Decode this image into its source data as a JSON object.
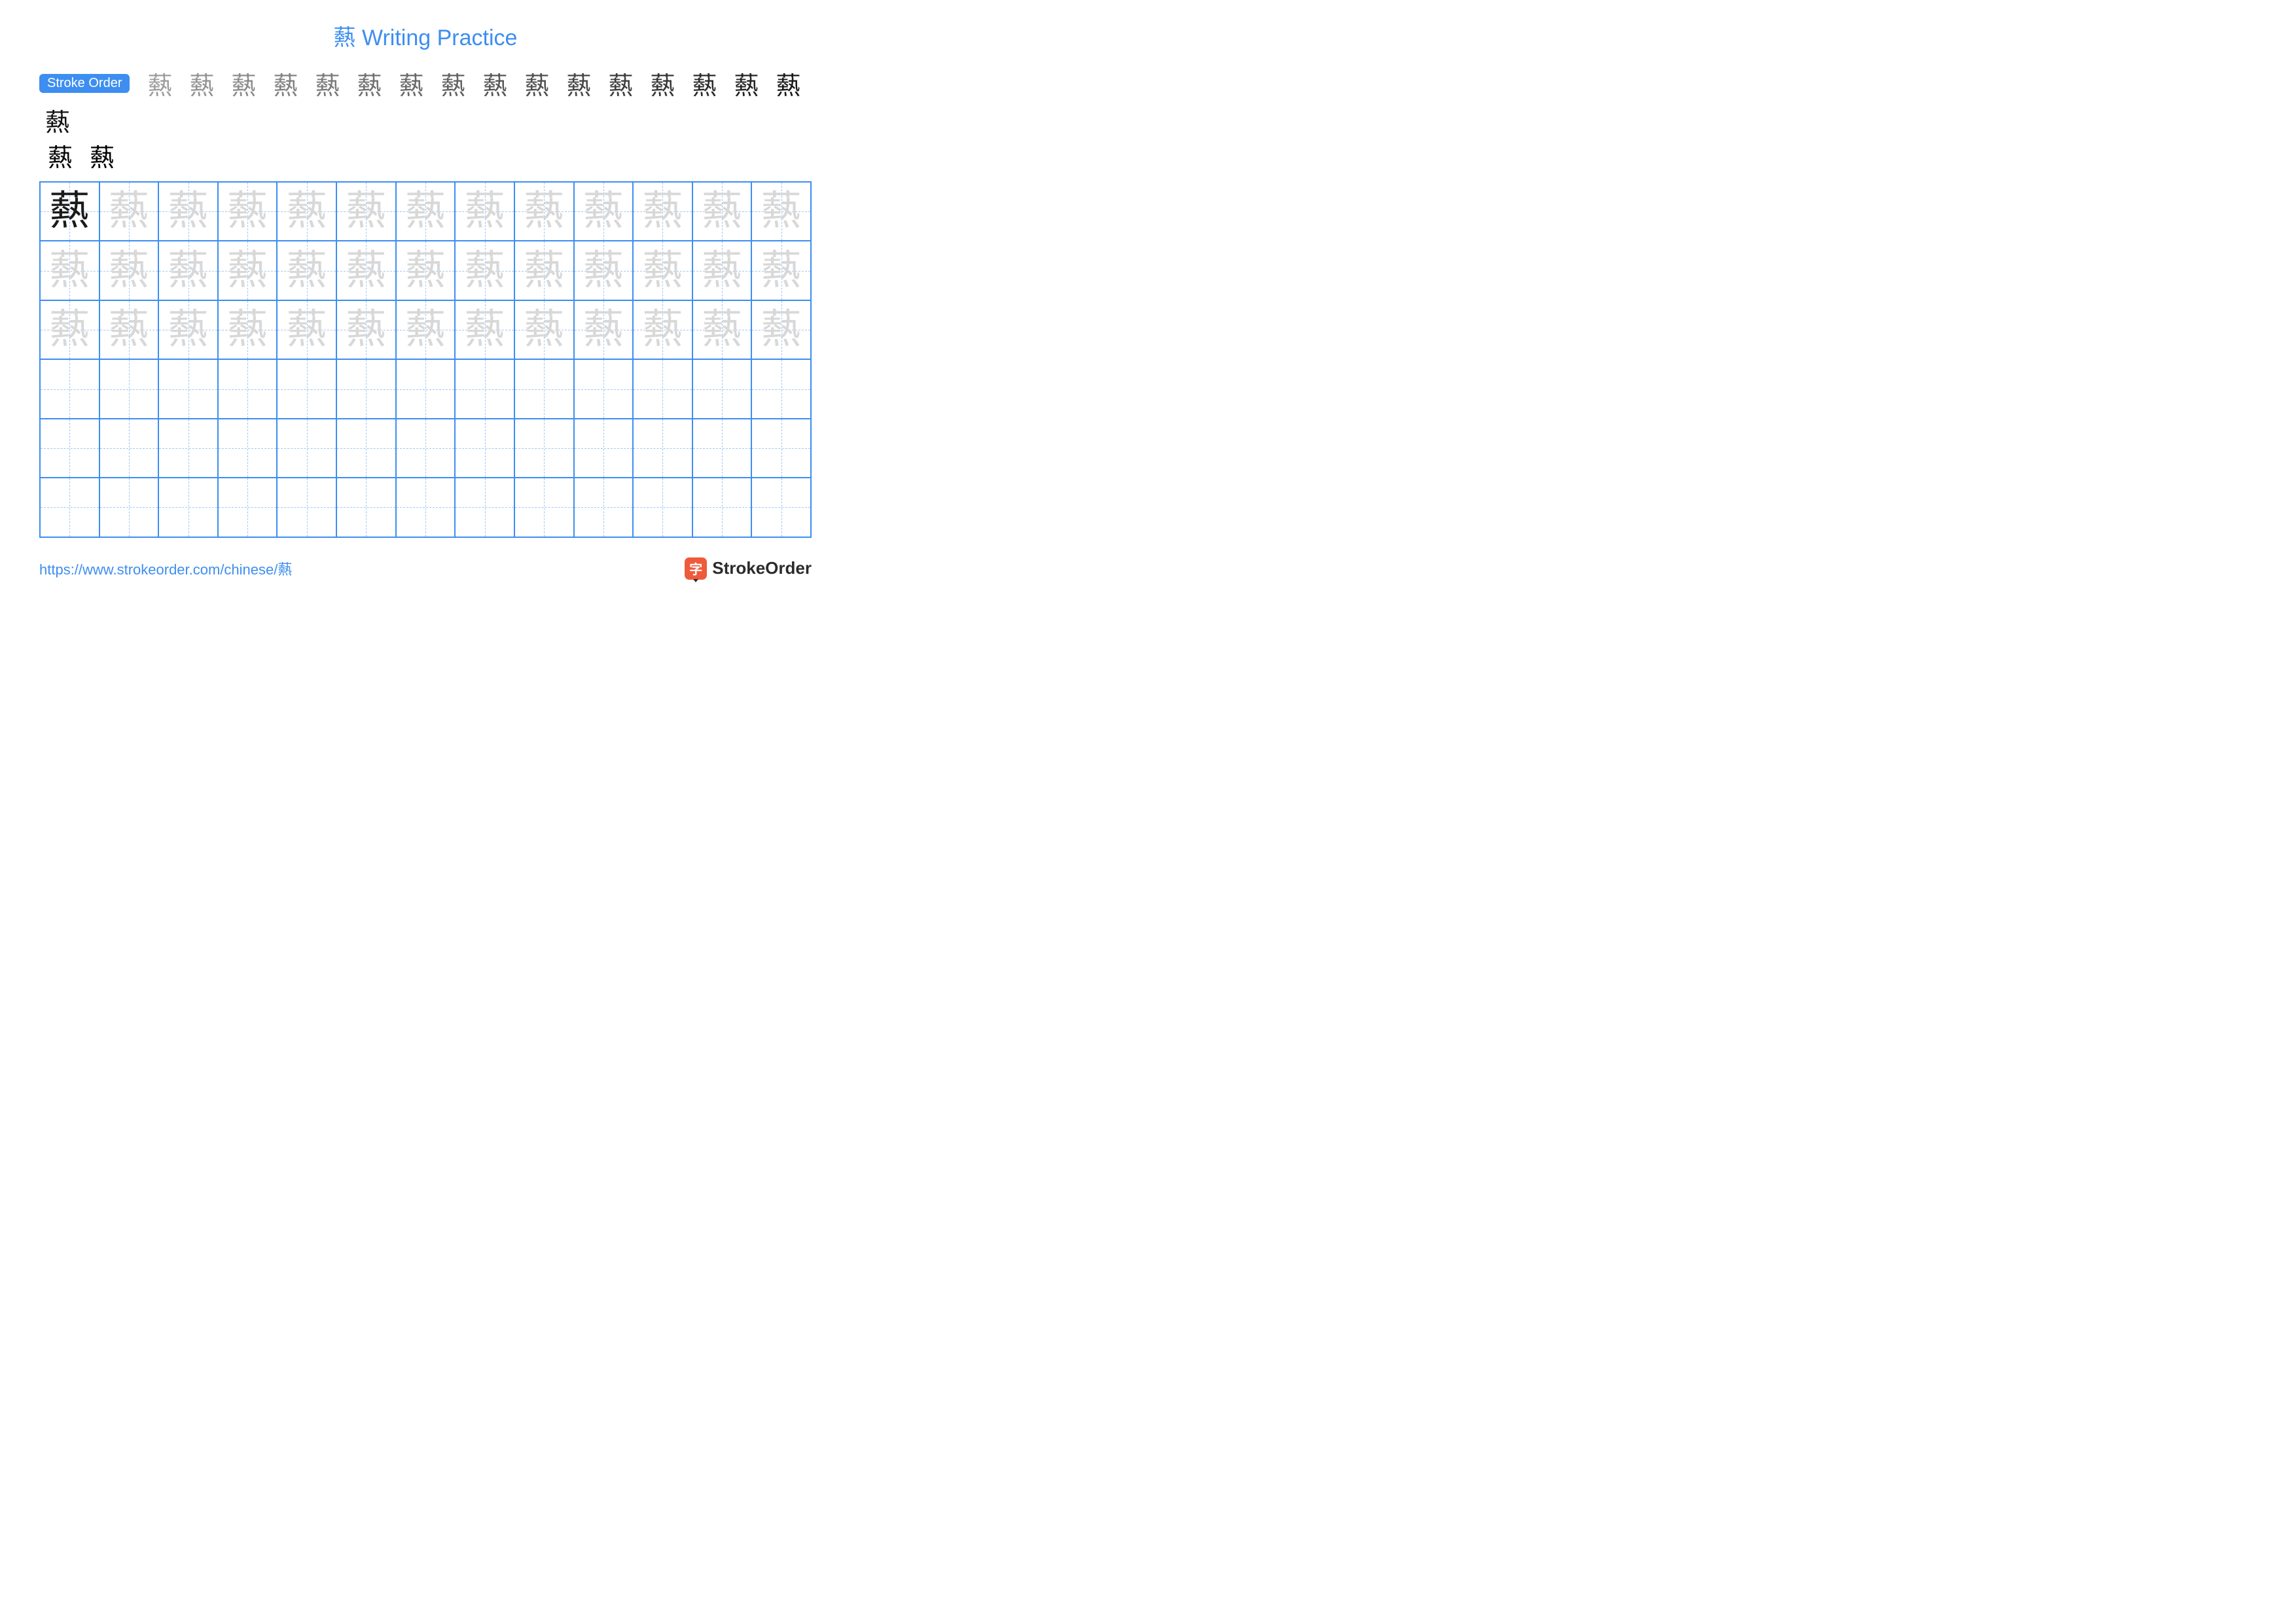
{
  "title": "爇 Writing Practice",
  "character": "爇",
  "stroke_order_label": "Stroke Order",
  "stroke_count": 19,
  "colors": {
    "accent": "#3d8ef0",
    "badge_bg": "#3d8ef0",
    "title": "#3d8ef0",
    "grid_border": "#3d8ef0",
    "grid_guide": "#9fc6f5",
    "trace": "#d8d8d8",
    "solid": "#1a1a1a",
    "url": "#3d8ef0",
    "brand_icon_bg": "#ef5a3c",
    "brand_text": "#2b2b2b"
  },
  "grid": {
    "cols": 13,
    "rows": 6,
    "solid_cells": 1,
    "trace_cells": 38
  },
  "footer": {
    "url": "https://www.strokeorder.com/chinese/爇",
    "brand_icon_char": "字",
    "brand_name": "StrokeOrder"
  }
}
